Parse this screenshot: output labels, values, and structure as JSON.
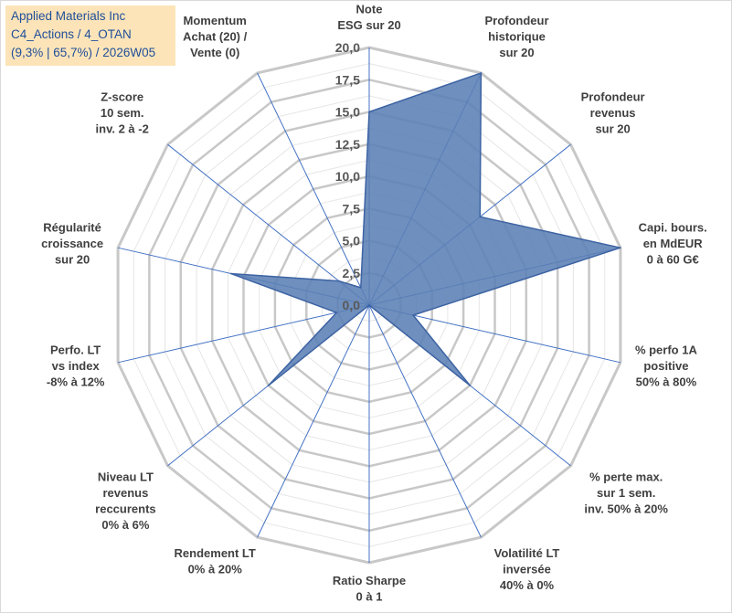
{
  "header": {
    "line1": "Applied Materials Inc",
    "line2": "C4_Actions / 4_OTAN",
    "line3": "(9,3% | 65,7%) / 2026W05"
  },
  "colors": {
    "fill": "#5b7fb5",
    "stroke": "#3d63a3",
    "spoke": "#4472c4",
    "grid": "#c8c8c8",
    "label": "#404040"
  },
  "chart_data": {
    "type": "radar",
    "rmin": 0,
    "rmax": 20,
    "ticks": [
      "0,0",
      "2,5",
      "5,0",
      "7,5",
      "10,0",
      "12,5",
      "15,0",
      "17,5",
      "20,0"
    ],
    "minor_rings": 16,
    "axes": [
      {
        "label": [
          "Note",
          "ESG sur 20"
        ],
        "value": 15
      },
      {
        "label": [
          "Profondeur",
          "historique",
          "sur 20"
        ],
        "value": 20
      },
      {
        "label": [
          "Profondeur",
          "revenus",
          "sur 20"
        ],
        "value": 11
      },
      {
        "label": [
          "Capi. bours.",
          "en MdEUR",
          "0 à 60 G€"
        ],
        "value": 20
      },
      {
        "label": [
          "% perfo 1A",
          "positive",
          "50% à 80%"
        ],
        "value": 3.5
      },
      {
        "label": [
          "% perte max.",
          "sur 1 sem.",
          "inv. 50% à 20%"
        ],
        "value": 10
      },
      {
        "label": [
          "Volatilité LT",
          "inversée",
          "40% à 0%"
        ],
        "value": 0
      },
      {
        "label": [
          "Ratio Sharpe",
          "0 à 1"
        ],
        "value": 0
      },
      {
        "label": [
          "Rendement LT",
          "0% à 20%"
        ],
        "value": 0
      },
      {
        "label": [
          "Niveau LT",
          "revenus",
          "reccurents",
          "0% à 6%"
        ],
        "value": 10
      },
      {
        "label": [
          "Perfo. LT",
          "vs index",
          "-8% à 12%"
        ],
        "value": 2.6
      },
      {
        "label": [
          "Régularité",
          "croissance",
          "sur 20"
        ],
        "value": 11
      },
      {
        "label": [
          "Z-score",
          "10 sem.",
          "inv. 2 à -2"
        ],
        "value": 3
      },
      {
        "label": [
          "Momentum",
          "Achat (20) /",
          "Vente (0)"
        ],
        "value": 1.5
      }
    ]
  }
}
